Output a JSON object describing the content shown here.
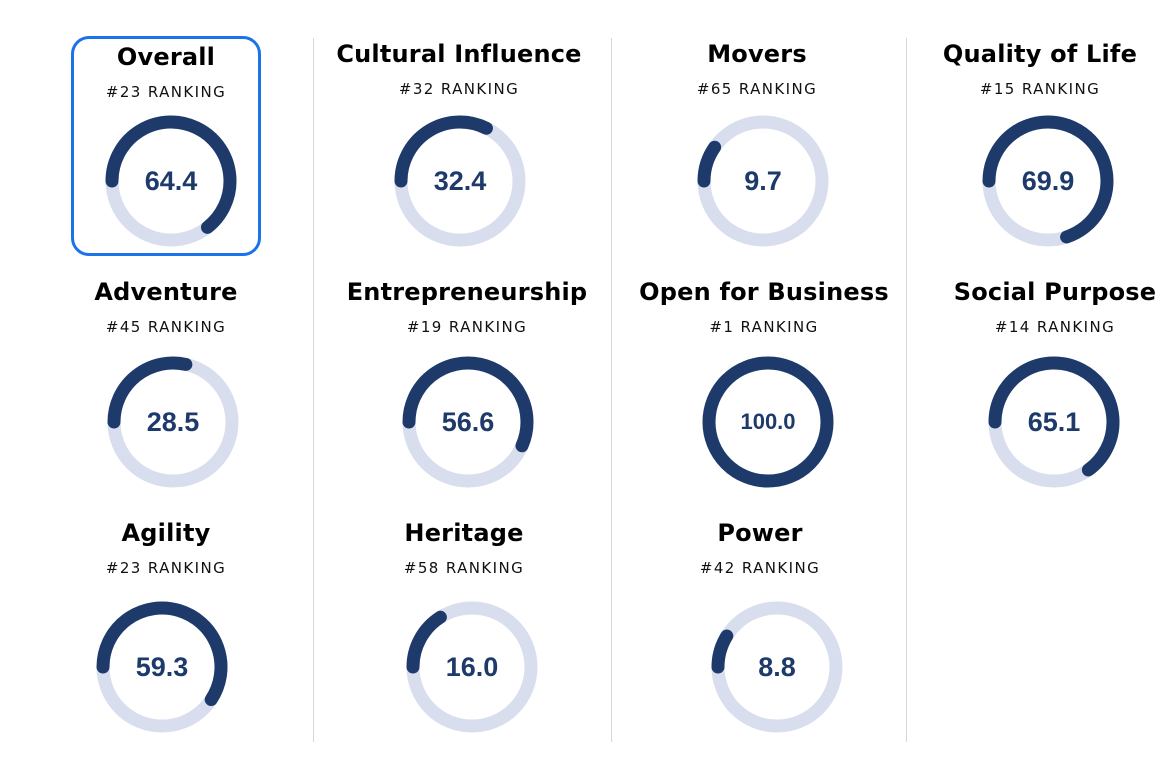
{
  "colors": {
    "ring_fill": "#1d3a6b",
    "ring_track": "#d8deee",
    "selected_border": "#1a73e8",
    "divider": "#d8d8d8"
  },
  "header_fragments": [
    "•••••",
    "•••••",
    "•••••"
  ],
  "metrics": [
    {
      "name": "Overall",
      "rank_label": "#23 RANKING",
      "score": "64.4",
      "value": 64.4,
      "selected": true
    },
    {
      "name": "Cultural Influence",
      "rank_label": "#32 RANKING",
      "score": "32.4",
      "value": 32.4,
      "selected": false
    },
    {
      "name": "Movers",
      "rank_label": "#65 RANKING",
      "score": "9.7",
      "value": 9.7,
      "selected": false
    },
    {
      "name": "Quality of Life",
      "rank_label": "#15 RANKING",
      "score": "69.9",
      "value": 69.9,
      "selected": false
    },
    {
      "name": "Adventure",
      "rank_label": "#45 RANKING",
      "score": "28.5",
      "value": 28.5,
      "selected": false
    },
    {
      "name": "Entrepreneurship",
      "rank_label": "#19 RANKING",
      "score": "56.6",
      "value": 56.6,
      "selected": false
    },
    {
      "name": "Open for Business",
      "rank_label": "#1 RANKING",
      "score": "100.0",
      "value": 100.0,
      "selected": false
    },
    {
      "name": "Social Purpose",
      "rank_label": "#14 RANKING",
      "score": "65.1",
      "value": 65.1,
      "selected": false
    },
    {
      "name": "Agility",
      "rank_label": "#23 RANKING",
      "score": "59.3",
      "value": 59.3,
      "selected": false
    },
    {
      "name": "Heritage",
      "rank_label": "#58 RANKING",
      "score": "16.0",
      "value": 16.0,
      "selected": false
    },
    {
      "name": "Power",
      "rank_label": "#42 RANKING",
      "score": "8.8",
      "value": 8.8,
      "selected": false
    }
  ]
}
